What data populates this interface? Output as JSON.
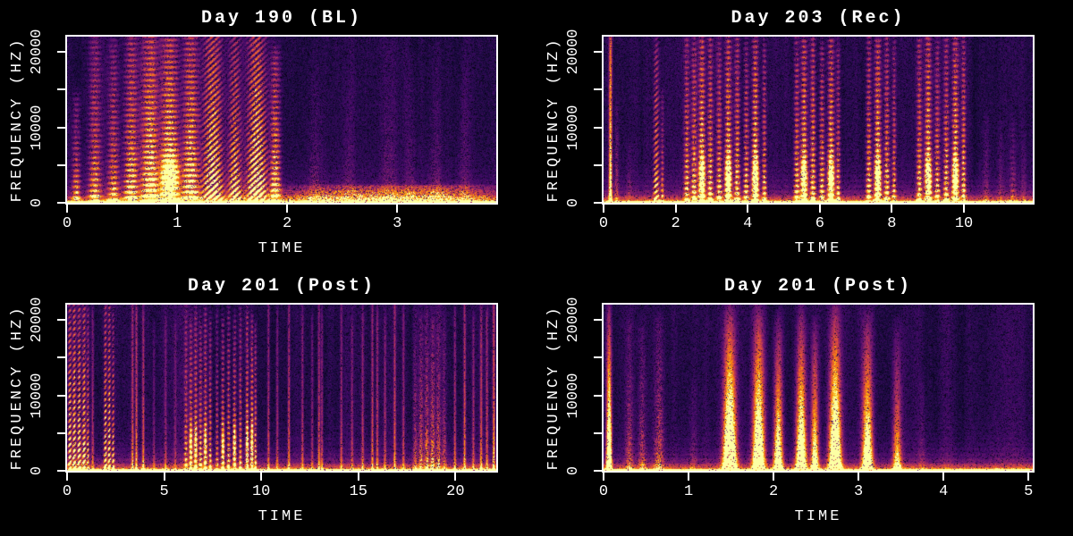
{
  "figure": {
    "background": "#000000",
    "text_color": "#ffffff",
    "colormap": "inferno",
    "spine_color": "#ffffff"
  },
  "chart_data": [
    {
      "type": "spectrogram",
      "title": "Day 190 (BL)",
      "xlabel": "TIME",
      "ylabel": "FREQUENCY (HZ)",
      "xlim": [
        0,
        3.9
      ],
      "ylim": [
        0,
        22050
      ],
      "x_ticks": [
        0,
        1,
        2,
        3
      ],
      "x_tick_labels": [
        "0",
        "1",
        "2",
        "3"
      ],
      "y_ticks": [
        0,
        5000,
        10000,
        15000,
        20000
      ],
      "y_tick_labels": [
        "0",
        "",
        "10000",
        "",
        "20000"
      ],
      "events": [
        [
          0.08,
          0.025,
          0.6,
          0.45,
          "harm"
        ],
        [
          0.25,
          0.04,
          0.95,
          0.5,
          "harm"
        ],
        [
          0.42,
          0.035,
          0.9,
          0.5,
          "harm"
        ],
        [
          0.58,
          0.045,
          1.0,
          0.7,
          "harm"
        ],
        [
          0.75,
          0.05,
          1.0,
          0.9,
          "harm"
        ],
        [
          0.93,
          0.055,
          0.95,
          0.95,
          "blob"
        ],
        [
          1.12,
          0.05,
          1.0,
          0.85,
          "harm"
        ],
        [
          1.32,
          0.06,
          1.0,
          0.9,
          "stair"
        ],
        [
          1.52,
          0.04,
          0.95,
          0.7,
          "stair"
        ],
        [
          1.72,
          0.06,
          1.0,
          0.95,
          "stair"
        ],
        [
          1.89,
          0.03,
          0.85,
          0.75,
          "harm"
        ],
        [
          2.25,
          0.05,
          0.9,
          0.16,
          "noise"
        ],
        [
          2.55,
          0.04,
          0.7,
          0.1,
          "noise"
        ],
        [
          2.92,
          0.05,
          0.9,
          0.15,
          "noise"
        ],
        [
          3.12,
          0.04,
          0.85,
          0.13,
          "noise"
        ],
        [
          3.35,
          0.05,
          0.9,
          0.15,
          "noise"
        ],
        [
          3.6,
          0.04,
          0.75,
          0.11,
          "noise"
        ],
        [
          2.6,
          0.45,
          0.1,
          0.5,
          "noise"
        ],
        [
          3.4,
          0.35,
          0.1,
          0.45,
          "noise"
        ]
      ]
    },
    {
      "type": "spectrogram",
      "title": "Day 203 (Rec)",
      "xlabel": "TIME",
      "ylabel": "FREQUENCY (HZ)",
      "xlim": [
        0,
        11.91
      ],
      "ylim": [
        0,
        22050
      ],
      "x_ticks": [
        0,
        2,
        4,
        6,
        8,
        10
      ],
      "x_tick_labels": [
        "0",
        "2",
        "4",
        "6",
        "8",
        "10"
      ],
      "y_ticks": [
        0,
        5000,
        10000,
        15000,
        20000
      ],
      "y_tick_labels": [
        "0",
        "",
        "10000",
        "",
        "20000"
      ],
      "events": [
        [
          0.18,
          0.03,
          1.0,
          0.8,
          "line"
        ],
        [
          0.35,
          0.04,
          0.55,
          0.25,
          "noise"
        ],
        [
          0.7,
          0.05,
          0.35,
          0.12,
          "noise"
        ],
        [
          1.45,
          0.05,
          0.9,
          0.65,
          "stair"
        ],
        [
          1.62,
          0.03,
          0.6,
          0.4,
          "harm"
        ],
        [
          2.3,
          0.05,
          0.95,
          0.6,
          "harm"
        ],
        [
          2.5,
          0.05,
          0.9,
          0.65,
          "harm"
        ],
        [
          2.72,
          0.06,
          0.95,
          0.9,
          "blob"
        ],
        [
          2.95,
          0.05,
          1.0,
          0.7,
          "harm"
        ],
        [
          3.2,
          0.05,
          0.9,
          0.6,
          "harm"
        ],
        [
          3.45,
          0.06,
          0.95,
          0.9,
          "blob"
        ],
        [
          3.7,
          0.05,
          1.0,
          0.7,
          "harm"
        ],
        [
          3.95,
          0.05,
          0.9,
          0.65,
          "harm"
        ],
        [
          4.2,
          0.06,
          0.95,
          0.95,
          "blob"
        ],
        [
          4.45,
          0.04,
          0.9,
          0.6,
          "harm"
        ],
        [
          5.35,
          0.05,
          0.95,
          0.65,
          "harm"
        ],
        [
          5.55,
          0.06,
          0.95,
          0.9,
          "blob"
        ],
        [
          5.8,
          0.05,
          1.0,
          0.7,
          "harm"
        ],
        [
          6.05,
          0.05,
          0.9,
          0.65,
          "harm"
        ],
        [
          6.3,
          0.06,
          0.95,
          0.9,
          "blob"
        ],
        [
          6.5,
          0.04,
          0.9,
          0.55,
          "harm"
        ],
        [
          7.35,
          0.05,
          0.95,
          0.7,
          "harm"
        ],
        [
          7.6,
          0.06,
          0.95,
          0.95,
          "blob"
        ],
        [
          7.85,
          0.05,
          1.0,
          0.7,
          "harm"
        ],
        [
          8.05,
          0.04,
          0.9,
          0.5,
          "harm"
        ],
        [
          8.75,
          0.05,
          0.95,
          0.65,
          "harm"
        ],
        [
          9.0,
          0.06,
          0.95,
          0.9,
          "blob"
        ],
        [
          9.25,
          0.05,
          0.9,
          0.6,
          "harm"
        ],
        [
          9.5,
          0.05,
          0.95,
          0.7,
          "harm"
        ],
        [
          9.75,
          0.06,
          0.95,
          0.9,
          "blob"
        ],
        [
          9.98,
          0.04,
          0.95,
          0.7,
          "harm"
        ],
        [
          10.6,
          0.06,
          0.5,
          0.15,
          "noise"
        ],
        [
          11.0,
          0.05,
          0.45,
          0.13,
          "noise"
        ],
        [
          11.35,
          0.06,
          0.45,
          0.18,
          "harm"
        ],
        [
          11.65,
          0.05,
          0.4,
          0.12,
          "noise"
        ]
      ]
    },
    {
      "type": "spectrogram",
      "title": "Day 201 (Post)",
      "xlabel": "TIME",
      "ylabel": "FREQUENCY (HZ)",
      "xlim": [
        0,
        22.1
      ],
      "ylim": [
        0,
        22050
      ],
      "x_ticks": [
        0,
        5,
        10,
        15,
        20
      ],
      "x_tick_labels": [
        "0",
        "5",
        "10",
        "15",
        "20"
      ],
      "y_ticks": [
        0,
        5000,
        10000,
        15000,
        20000
      ],
      "y_tick_labels": [
        "0",
        "",
        "10000",
        "",
        "20000"
      ],
      "events": [
        [
          0.12,
          0.06,
          1.0,
          0.85,
          "stair"
        ],
        [
          0.35,
          0.06,
          1.0,
          0.9,
          "stair"
        ],
        [
          0.6,
          0.06,
          0.95,
          0.9,
          "stair"
        ],
        [
          0.85,
          0.06,
          1.0,
          0.85,
          "stair"
        ],
        [
          1.05,
          0.04,
          0.9,
          0.6,
          "stair"
        ],
        [
          1.3,
          0.03,
          0.9,
          0.3,
          "line"
        ],
        [
          1.95,
          0.05,
          1.0,
          0.8,
          "stair"
        ],
        [
          2.15,
          0.05,
          0.95,
          0.85,
          "stair"
        ],
        [
          2.35,
          0.04,
          0.9,
          0.6,
          "stair"
        ],
        [
          3.35,
          0.02,
          0.95,
          0.4,
          "line"
        ],
        [
          3.55,
          0.02,
          0.95,
          0.45,
          "line"
        ],
        [
          3.9,
          0.02,
          0.9,
          0.4,
          "line"
        ],
        [
          4.45,
          0.02,
          0.8,
          0.2,
          "line"
        ],
        [
          5.05,
          0.02,
          0.85,
          0.22,
          "line"
        ],
        [
          5.55,
          0.02,
          0.8,
          0.18,
          "line"
        ],
        [
          6.1,
          0.06,
          0.9,
          0.5,
          "harm"
        ],
        [
          6.35,
          0.06,
          0.85,
          0.6,
          "blob"
        ],
        [
          6.6,
          0.06,
          0.9,
          0.65,
          "blob"
        ],
        [
          6.85,
          0.06,
          0.85,
          0.6,
          "harm"
        ],
        [
          7.1,
          0.06,
          0.9,
          0.65,
          "blob"
        ],
        [
          7.35,
          0.05,
          0.85,
          0.55,
          "harm"
        ],
        [
          7.7,
          0.05,
          0.9,
          0.45,
          "harm"
        ],
        [
          8.0,
          0.06,
          0.85,
          0.6,
          "blob"
        ],
        [
          8.3,
          0.06,
          0.9,
          0.6,
          "harm"
        ],
        [
          8.6,
          0.06,
          0.85,
          0.65,
          "blob"
        ],
        [
          8.9,
          0.05,
          0.9,
          0.55,
          "harm"
        ],
        [
          9.25,
          0.05,
          0.9,
          0.7,
          "blob"
        ],
        [
          9.5,
          0.05,
          0.85,
          0.75,
          "blob"
        ],
        [
          9.68,
          0.04,
          0.8,
          0.6,
          "harm"
        ],
        [
          10.35,
          0.02,
          0.95,
          0.35,
          "line"
        ],
        [
          10.8,
          0.02,
          0.9,
          0.3,
          "line"
        ],
        [
          11.4,
          0.025,
          0.95,
          0.4,
          "line"
        ],
        [
          12.1,
          0.02,
          0.9,
          0.3,
          "line"
        ],
        [
          12.6,
          0.02,
          0.85,
          0.25,
          "line"
        ],
        [
          12.95,
          0.02,
          0.95,
          0.4,
          "line"
        ],
        [
          13.1,
          0.02,
          0.9,
          0.3,
          "line"
        ],
        [
          14.1,
          0.02,
          0.95,
          0.3,
          "line"
        ],
        [
          14.65,
          0.02,
          0.85,
          0.25,
          "line"
        ],
        [
          15.2,
          0.02,
          0.9,
          0.3,
          "line"
        ],
        [
          15.7,
          0.025,
          0.95,
          0.4,
          "line"
        ],
        [
          15.95,
          0.02,
          0.9,
          0.35,
          "line"
        ],
        [
          16.35,
          0.02,
          0.85,
          0.3,
          "line"
        ],
        [
          16.85,
          0.025,
          0.95,
          0.4,
          "line"
        ],
        [
          17.3,
          0.02,
          0.9,
          0.3,
          "line"
        ],
        [
          17.9,
          0.08,
          0.9,
          0.3,
          "noise"
        ],
        [
          18.2,
          0.08,
          0.85,
          0.4,
          "noise"
        ],
        [
          18.5,
          0.08,
          0.9,
          0.45,
          "noise"
        ],
        [
          18.8,
          0.08,
          0.85,
          0.45,
          "noise"
        ],
        [
          19.1,
          0.08,
          0.9,
          0.4,
          "noise"
        ],
        [
          19.4,
          0.07,
          0.85,
          0.3,
          "noise"
        ],
        [
          19.95,
          0.02,
          0.9,
          0.35,
          "line"
        ],
        [
          20.45,
          0.025,
          0.95,
          0.45,
          "line"
        ],
        [
          20.9,
          0.02,
          0.85,
          0.3,
          "line"
        ],
        [
          21.3,
          0.025,
          0.9,
          0.4,
          "line"
        ],
        [
          21.6,
          0.02,
          0.9,
          0.35,
          "line"
        ],
        [
          21.95,
          0.03,
          0.95,
          0.55,
          "line"
        ]
      ]
    },
    {
      "type": "spectrogram",
      "title": "Day 201 (Post)",
      "xlabel": "TIME",
      "ylabel": "FREQUENCY (HZ)",
      "xlim": [
        0,
        5.05
      ],
      "ylim": [
        0,
        22050
      ],
      "x_ticks": [
        0,
        1,
        2,
        3,
        4,
        5
      ],
      "x_tick_labels": [
        "0",
        "1",
        "2",
        "3",
        "4",
        "5"
      ],
      "y_ticks": [
        0,
        5000,
        10000,
        15000,
        20000
      ],
      "y_tick_labels": [
        "0",
        "",
        "10000",
        "",
        "20000"
      ],
      "events": [
        [
          0.06,
          0.02,
          1.0,
          0.9,
          "flame"
        ],
        [
          0.3,
          0.03,
          0.85,
          0.3,
          "noise"
        ],
        [
          0.45,
          0.03,
          0.8,
          0.28,
          "noise"
        ],
        [
          0.65,
          0.04,
          0.85,
          0.35,
          "noise"
        ],
        [
          1.05,
          0.03,
          0.5,
          0.12,
          "noise"
        ],
        [
          1.48,
          0.05,
          1.0,
          1.0,
          "flame"
        ],
        [
          1.82,
          0.045,
          1.0,
          0.9,
          "flame"
        ],
        [
          2.05,
          0.035,
          0.95,
          0.65,
          "flame"
        ],
        [
          2.32,
          0.04,
          1.0,
          0.8,
          "flame"
        ],
        [
          2.48,
          0.03,
          0.9,
          0.55,
          "flame"
        ],
        [
          2.72,
          0.045,
          1.0,
          0.95,
          "flame"
        ],
        [
          3.1,
          0.04,
          0.95,
          0.7,
          "flame"
        ],
        [
          3.45,
          0.035,
          0.9,
          0.4,
          "flame"
        ],
        [
          3.75,
          0.03,
          0.5,
          0.12,
          "noise"
        ]
      ]
    }
  ]
}
